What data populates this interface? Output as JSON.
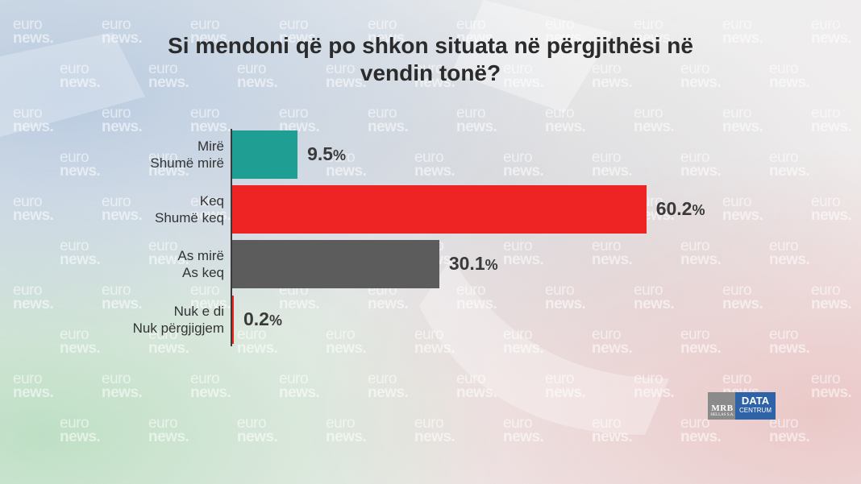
{
  "title_line1": "Si mendoni që po shkon situata në përgjithësi në",
  "title_line2": "vendin tonë?",
  "watermark": {
    "line1": "euro",
    "line2": "news."
  },
  "logos": {
    "mrb": "MRB",
    "mrb_sub": "HELLAS S.A.",
    "data": "DATA",
    "data_sub": "CENTRUM"
  },
  "chart_data": {
    "type": "bar",
    "orientation": "horizontal",
    "title": "Si mendoni që po shkon situata në përgjithësi në vendin tonë?",
    "categories": [
      [
        "Mirë",
        "Shumë mirë"
      ],
      [
        "Keq",
        "Shumë keq"
      ],
      [
        "As mirë",
        "As keq"
      ],
      [
        "Nuk e di",
        "Nuk përgjigjem"
      ]
    ],
    "values": [
      9.5,
      60.2,
      30.1,
      0.2
    ],
    "value_labels": [
      "9.5",
      "60.2",
      "30.1",
      "0.2"
    ],
    "unit": "%",
    "colors": [
      "#1f9e94",
      "#ee2424",
      "#5c5c5c",
      "#ee2424"
    ],
    "xlim": [
      0,
      75
    ],
    "grid": false,
    "legend": "none"
  }
}
